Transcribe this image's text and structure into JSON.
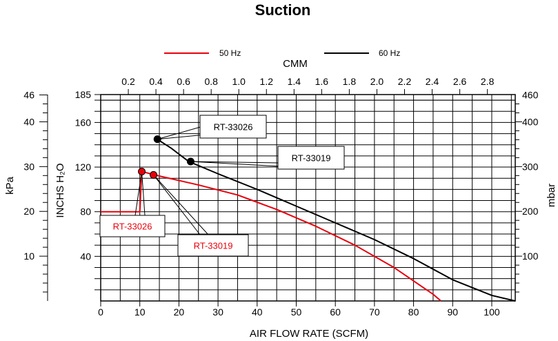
{
  "chart_data": {
    "type": "line",
    "title": "Suction",
    "legend": {
      "placement": "top-center"
    },
    "x_bottom": {
      "label": "AIR FLOW RATE (SCFM)",
      "range": [
        0,
        106
      ],
      "ticks": [
        "0",
        "10",
        "20",
        "30",
        "40",
        "50",
        "60",
        "70",
        "80",
        "90",
        "100"
      ]
    },
    "x_top": {
      "label": "CMM",
      "ticks": [
        "0.2",
        "0.4",
        "0.6",
        "0.8",
        "1.0",
        "1.2",
        "1.4",
        "1.6",
        "1.8",
        "2.0",
        "2.2",
        "2.4",
        "2.6",
        "2.8"
      ]
    },
    "y_inner_left": {
      "label": "INCHS H₂O",
      "range": [
        0,
        185
      ],
      "ticks": [
        "40",
        "80",
        "120",
        "160",
        "185"
      ]
    },
    "y_outer_left": {
      "label": "kPa",
      "ticks": [
        "10",
        "20",
        "30",
        "40",
        "46"
      ]
    },
    "y_right": {
      "label": "mbar",
      "ticks": [
        "100",
        "200",
        "300",
        "400",
        "460"
      ]
    },
    "grid": true,
    "series": [
      {
        "name": "50 Hz",
        "color": "#e8000b",
        "points": [
          [
            0,
            80
          ],
          [
            10,
            80
          ],
          [
            10.5,
            116
          ],
          [
            15,
            112
          ],
          [
            25,
            104
          ],
          [
            35,
            95
          ],
          [
            45,
            82
          ],
          [
            55,
            67
          ],
          [
            65,
            50
          ],
          [
            75,
            30
          ],
          [
            85,
            6
          ],
          [
            87,
            0
          ]
        ],
        "markers": [
          [
            10.5,
            116
          ],
          [
            13.5,
            113
          ]
        ]
      },
      {
        "name": "60 Hz",
        "color": "#000000",
        "points": [
          [
            14,
            146
          ],
          [
            18,
            137
          ],
          [
            22.5,
            125
          ],
          [
            30,
            114
          ],
          [
            40,
            100
          ],
          [
            50,
            85
          ],
          [
            60,
            70
          ],
          [
            70,
            55
          ],
          [
            80,
            38
          ],
          [
            90,
            19
          ],
          [
            100,
            5
          ],
          [
            106,
            0
          ]
        ],
        "markers": [
          [
            14.5,
            145
          ],
          [
            23,
            125
          ]
        ]
      }
    ],
    "callouts": [
      {
        "text": "RT-33026",
        "color": "#000000"
      },
      {
        "text": "RT-33019",
        "color": "#000000"
      },
      {
        "text": "RT-33026",
        "color": "#e8000b"
      },
      {
        "text": "RT-33019",
        "color": "#e8000b"
      }
    ]
  }
}
